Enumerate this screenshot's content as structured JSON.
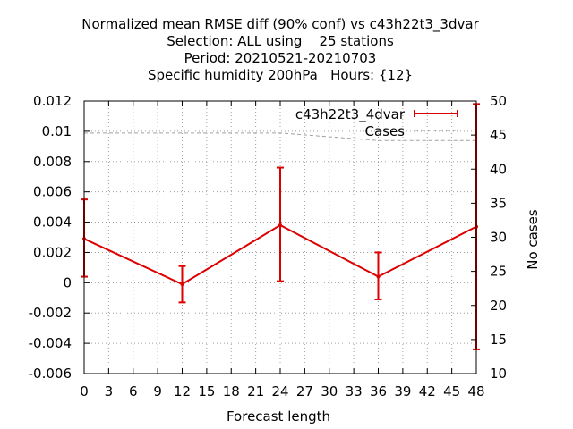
{
  "chart_data": {
    "type": "line",
    "title_lines": [
      "Normalized mean RMSE diff (90% conf) vs c43h22t3_3dvar",
      "Selection: ALL using    25 stations",
      "Period: 20210521-20210703",
      "Specific humidity 200hPa   Hours: {12}"
    ],
    "xlabel": "Forecast length",
    "ylabel_right": "No cases",
    "xlim": [
      0,
      48
    ],
    "ylim": [
      -0.006,
      0.012
    ],
    "y2lim": [
      10,
      50
    ],
    "x_ticks": [
      0,
      3,
      6,
      9,
      12,
      15,
      18,
      21,
      24,
      27,
      30,
      33,
      36,
      39,
      42,
      45,
      48
    ],
    "y_ticks": [
      "-0.006",
      "-0.004",
      "-0.002",
      "0",
      "0.002",
      "0.004",
      "0.006",
      "0.008",
      "0.01",
      "0.012"
    ],
    "y2_ticks": [
      "10",
      "15",
      "20",
      "25",
      "30",
      "35",
      "40",
      "45",
      "50"
    ],
    "grid": true,
    "legend_position": "top-right",
    "series": [
      {
        "name": "c43h22t3_4dvar",
        "color": "#dd0000",
        "axis": "left",
        "x": [
          0,
          12,
          24,
          36,
          48
        ],
        "y": [
          0.0029,
          -0.0001,
          0.0038,
          0.0004,
          0.0037
        ],
        "err_low": [
          0.0004,
          -0.0013,
          0.0001,
          -0.0011,
          -0.0044
        ],
        "err_high": [
          0.0055,
          0.0011,
          0.0076,
          0.002,
          0.0118
        ]
      },
      {
        "name": "Cases",
        "color": "#a0a0a0",
        "axis": "right",
        "x": [
          0,
          12,
          24,
          36,
          48
        ],
        "y": [
          45.3,
          45.3,
          45.3,
          44.2,
          44.2
        ]
      }
    ]
  }
}
